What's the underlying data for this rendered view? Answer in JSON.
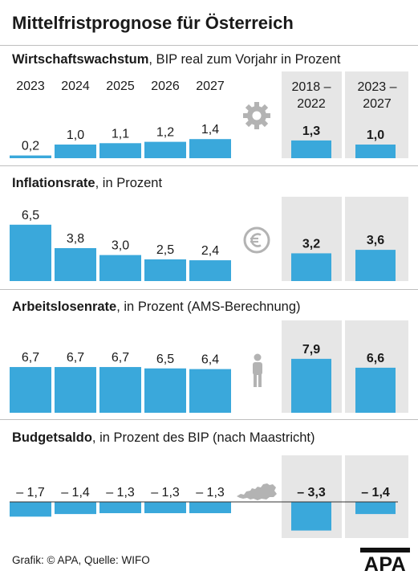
{
  "title": "Mittelfristprognose für Österreich",
  "years": [
    "2023",
    "2024",
    "2025",
    "2026",
    "2027"
  ],
  "avg_headers": [
    [
      "2018 –",
      "2022"
    ],
    [
      "2023 –",
      "2027"
    ]
  ],
  "footer": "Grafik: © APA, Quelle: WIFO",
  "logo_text": "APA",
  "colors": {
    "bar": "#3aa8db",
    "panel": "#e6e6e6",
    "icon": "#b3b3b3"
  },
  "chart_data": [
    {
      "type": "bar",
      "title_bold": "Wirtschaftswachstum",
      "title_rest": ", BIP real zum Vorjahr in Prozent",
      "categories": [
        "2023",
        "2024",
        "2025",
        "2026",
        "2027"
      ],
      "values": [
        0.2,
        1.0,
        1.1,
        1.2,
        1.4
      ],
      "labels": [
        "0,2",
        "1,0",
        "1,1",
        "1,2",
        "1,4"
      ],
      "averages": [
        {
          "period": "2018 – 2022",
          "value": 1.3,
          "label": "1,3"
        },
        {
          "period": "2023 – 2027",
          "value": 1.0,
          "label": "1,0"
        }
      ],
      "icon": "gear-icon"
    },
    {
      "type": "bar",
      "title_bold": "Inflationsrate",
      "title_rest": ", in Prozent",
      "categories": [
        "2023",
        "2024",
        "2025",
        "2026",
        "2027"
      ],
      "values": [
        6.5,
        3.8,
        3.0,
        2.5,
        2.4
      ],
      "labels": [
        "6,5",
        "3,8",
        "3,0",
        "2,5",
        "2,4"
      ],
      "averages": [
        {
          "period": "2018 – 2022",
          "value": 3.2,
          "label": "3,2"
        },
        {
          "period": "2023 – 2027",
          "value": 3.6,
          "label": "3,6"
        }
      ],
      "icon": "euro-icon"
    },
    {
      "type": "bar",
      "title_bold": "Arbeitslosenrate",
      "title_rest": ", in Prozent (AMS-Berechnung)",
      "categories": [
        "2023",
        "2024",
        "2025",
        "2026",
        "2027"
      ],
      "values": [
        6.7,
        6.7,
        6.7,
        6.5,
        6.4
      ],
      "labels": [
        "6,7",
        "6,7",
        "6,7",
        "6,5",
        "6,4"
      ],
      "averages": [
        {
          "period": "2018 – 2022",
          "value": 7.9,
          "label": "7,9"
        },
        {
          "period": "2023 – 2027",
          "value": 6.6,
          "label": "6,6"
        }
      ],
      "icon": "person-icon"
    },
    {
      "type": "bar",
      "title_bold": "Budgetsaldo",
      "title_rest": ", in Prozent des BIP (nach Maastricht)",
      "categories": [
        "2023",
        "2024",
        "2025",
        "2026",
        "2027"
      ],
      "values": [
        -1.7,
        -1.4,
        -1.3,
        -1.3,
        -1.3
      ],
      "labels": [
        "– 1,7",
        "– 1,4",
        "– 1,3",
        "– 1,3",
        "– 1,3"
      ],
      "averages": [
        {
          "period": "2018 – 2022",
          "value": -3.3,
          "label": "– 3,3"
        },
        {
          "period": "2023 – 2027",
          "value": -1.4,
          "label": "– 1,4"
        }
      ],
      "icon": "austria-map-icon"
    }
  ]
}
